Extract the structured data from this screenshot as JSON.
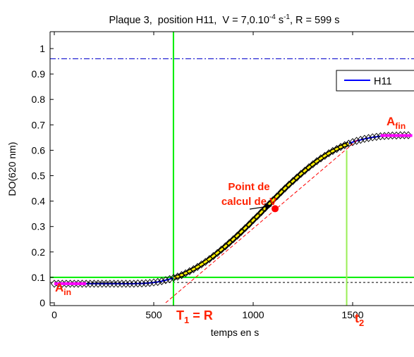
{
  "chart_data": {
    "type": "line",
    "title": {
      "plate": "Plaque 3,",
      "position": "position  H11,",
      "v_main": "V = 7,0.10",
      "v_exp": "-4",
      "v_unit": " s",
      "v_unit_exp": "-1",
      "r_text": ",  R = 599 s"
    },
    "xlabel": "temps en s",
    "ylabel": "DO(620 nm)",
    "xlim": [
      -20,
      1800
    ],
    "ylim": [
      0,
      1.05
    ],
    "xticks": [
      0,
      500,
      1000,
      1500
    ],
    "xtick_labels": [
      "0",
      "500",
      "1000",
      "1500"
    ],
    "yticks": [
      0,
      0.1,
      0.2,
      0.3,
      0.4,
      0.5,
      0.6,
      0.7,
      0.8,
      0.9,
      1
    ],
    "ytick_labels": [
      "0",
      "0.1",
      "0.2",
      "0.3",
      "0.4",
      "0.5",
      "0.6",
      "0.7",
      "0.8",
      "0.9",
      "1"
    ],
    "legend": {
      "position": "top-right",
      "label": "H11"
    },
    "series": [
      {
        "name": "H11",
        "color": "#0000ff",
        "x": [
          0,
          20,
          40,
          60,
          80,
          100,
          120,
          140,
          160,
          180,
          200,
          220,
          240,
          260,
          280,
          300,
          320,
          340,
          360,
          380,
          400,
          420,
          440,
          460,
          480,
          500,
          520,
          540,
          560,
          580,
          600,
          620,
          640,
          660,
          680,
          700,
          720,
          740,
          760,
          780,
          800,
          820,
          840,
          860,
          880,
          900,
          920,
          940,
          960,
          980,
          1000,
          1020,
          1040,
          1060,
          1080,
          1100,
          1120,
          1140,
          1160,
          1180,
          1200,
          1220,
          1240,
          1260,
          1280,
          1300,
          1320,
          1340,
          1360,
          1380,
          1400,
          1420,
          1440,
          1460,
          1480,
          1500,
          1520,
          1540,
          1560,
          1580,
          1600,
          1620,
          1640,
          1660,
          1680,
          1700,
          1720,
          1740,
          1760,
          1780
        ],
        "y": [
          0.075,
          0.075,
          0.075,
          0.075,
          0.075,
          0.075,
          0.075,
          0.075,
          0.075,
          0.075,
          0.075,
          0.075,
          0.075,
          0.075,
          0.075,
          0.075,
          0.075,
          0.075,
          0.075,
          0.075,
          0.075,
          0.076,
          0.076,
          0.077,
          0.078,
          0.08,
          0.082,
          0.085,
          0.089,
          0.093,
          0.098,
          0.103,
          0.109,
          0.116,
          0.124,
          0.132,
          0.141,
          0.151,
          0.161,
          0.172,
          0.184,
          0.196,
          0.209,
          0.222,
          0.236,
          0.25,
          0.264,
          0.279,
          0.294,
          0.309,
          0.325,
          0.34,
          0.356,
          0.372,
          0.388,
          0.404,
          0.419,
          0.435,
          0.45,
          0.465,
          0.479,
          0.493,
          0.507,
          0.52,
          0.533,
          0.545,
          0.557,
          0.568,
          0.578,
          0.588,
          0.597,
          0.605,
          0.613,
          0.62,
          0.626,
          0.632,
          0.637,
          0.641,
          0.645,
          0.648,
          0.651,
          0.653,
          0.655,
          0.656,
          0.657,
          0.658,
          0.658,
          0.659,
          0.659,
          0.659
        ]
      }
    ],
    "fit_segment": {
      "color": "#ffee00",
      "x_start": 600,
      "x_end": 1480
    },
    "inflection_point": {
      "x": 1110,
      "y": 0.37,
      "color": "#ff0000"
    },
    "tangent": {
      "x1": 560,
      "y1": 0,
      "x2": 1530,
      "y2": 0.645,
      "color": "#ff0000"
    },
    "baseline_segment": {
      "x_start": 0,
      "x_end": 160,
      "y": 0.075,
      "color": "#ff00ff"
    },
    "plateau_segment": {
      "x_start": 1640,
      "x_end": 1800,
      "y": 0.658,
      "color": "#ff00ff"
    },
    "reference_lines": {
      "upper_dashdot": {
        "y": 0.96,
        "color": "#0000cc"
      },
      "lower_dotted": {
        "y": 0.08,
        "color": "#000000"
      },
      "green_horizontal": {
        "y": 0.1,
        "color": "#00ee00"
      },
      "green_vertical_T1": {
        "x": 599,
        "color": "#00ee00"
      },
      "green_vertical_t2": {
        "x": 1470,
        "color": "#99ee55"
      }
    },
    "annotations": {
      "a_in": {
        "main": "A",
        "sub": "in"
      },
      "a_fin": {
        "main": "A",
        "sub": "fin"
      },
      "t1": {
        "main": "T",
        "sub": "1",
        "rest": " = R"
      },
      "t2": {
        "main": "t",
        "sub": "2"
      },
      "point_label_line1": "Point de",
      "point_label_line2": "calcul de V"
    }
  }
}
